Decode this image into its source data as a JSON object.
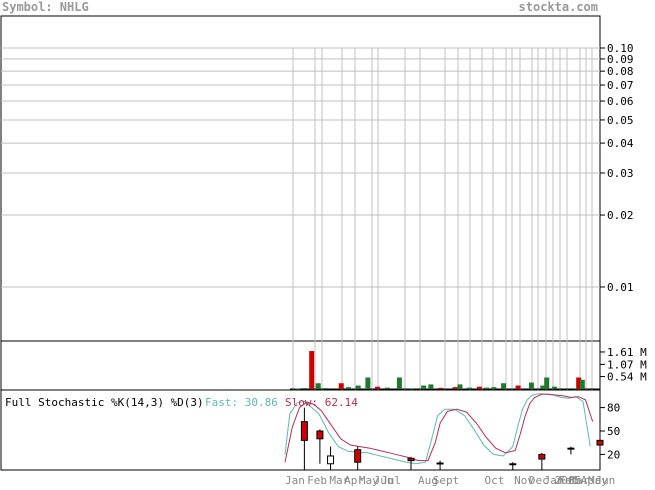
{
  "header": {
    "symbol_label": "Symbol: NHLG",
    "site": "stockta.com"
  },
  "colors": {
    "header_text": "#999999",
    "grid": "#c0c0c0",
    "axis": "#000000",
    "up_volume": "#1f7a2e",
    "down_volume": "#cc0000",
    "fast_line": "#5fb8b0",
    "slow_line": "#b03050",
    "fast_label": "#5fb8b0",
    "slow_label": "#b03050",
    "tick_label": "#888888"
  },
  "stochastic": {
    "title": "Full Stochastic %K(14,3) %D(3)",
    "fast_label": "Fast: 30.86",
    "slow_label": "Slow: 62.14"
  },
  "chart_data": [
    {
      "type": "line",
      "panel": "price",
      "scale": "log",
      "y_ticks": [
        0.1,
        0.09,
        0.08,
        0.07,
        0.06,
        0.05,
        0.04,
        0.03,
        0.02,
        0.01
      ],
      "y_tick_labels": [
        "0.10",
        "0.09",
        "0.08",
        "0.07",
        "0.06",
        "0.05",
        "0.04",
        "0.03",
        "0.02",
        "0.01"
      ],
      "ylim": [
        0.006,
        0.1
      ],
      "grid": true
    },
    {
      "type": "bar",
      "panel": "volume",
      "y_tick_labels": [
        "1.61 M",
        "1.07 M",
        "0.54 M"
      ],
      "y_ticks": [
        1.61,
        1.07,
        0.54
      ],
      "ylim": [
        0,
        2.0
      ],
      "unit": "M",
      "bars": [
        {
          "x": 0.05,
          "v": 0.02,
          "dir": "up"
        },
        {
          "x": 0.08,
          "v": 0.04,
          "dir": "up"
        },
        {
          "x": 0.108,
          "v": 1.65,
          "dir": "down"
        },
        {
          "x": 0.135,
          "v": 0.25,
          "dir": "up"
        },
        {
          "x": 0.165,
          "v": 0.04,
          "dir": "up"
        },
        {
          "x": 0.23,
          "v": 0.25,
          "dir": "down"
        },
        {
          "x": 0.26,
          "v": 0.08,
          "dir": "up"
        },
        {
          "x": 0.3,
          "v": 0.15,
          "dir": "up"
        },
        {
          "x": 0.34,
          "v": 0.5,
          "dir": "up"
        },
        {
          "x": 0.38,
          "v": 0.1,
          "dir": "down"
        },
        {
          "x": 0.42,
          "v": 0.06,
          "dir": "up"
        },
        {
          "x": 0.47,
          "v": 0.5,
          "dir": "up"
        },
        {
          "x": 0.52,
          "v": 0.03,
          "dir": "up"
        },
        {
          "x": 0.57,
          "v": 0.15,
          "dir": "up"
        },
        {
          "x": 0.6,
          "v": 0.2,
          "dir": "up"
        },
        {
          "x": 0.64,
          "v": 0.05,
          "dir": "down"
        },
        {
          "x": 0.7,
          "v": 0.08,
          "dir": "down"
        },
        {
          "x": 0.72,
          "v": 0.2,
          "dir": "up"
        },
        {
          "x": 0.76,
          "v": 0.06,
          "dir": "up"
        },
        {
          "x": 0.8,
          "v": 0.1,
          "dir": "down"
        },
        {
          "x": 0.83,
          "v": 0.06,
          "dir": "up"
        },
        {
          "x": 0.86,
          "v": 0.08,
          "dir": "up"
        },
        {
          "x": 0.9,
          "v": 0.25,
          "dir": "up"
        },
        {
          "x": 0.96,
          "v": 0.15,
          "dir": "down"
        },
        {
          "x": 1.015,
          "v": 0.28,
          "dir": "up"
        },
        {
          "x": 1.062,
          "v": 0.15,
          "dir": "up"
        },
        {
          "x": 1.078,
          "v": 0.5,
          "dir": "up"
        },
        {
          "x": 1.11,
          "v": 0.1,
          "dir": "up"
        },
        {
          "x": 1.2,
          "v": 0.03,
          "dir": "up"
        },
        {
          "x": 1.21,
          "v": 0.5,
          "dir": "down"
        },
        {
          "x": 1.225,
          "v": 0.4,
          "dir": "up"
        }
      ]
    },
    {
      "type": "line",
      "panel": "stochastic",
      "y_ticks": [
        80,
        50,
        20
      ],
      "y_tick_labels": [
        "80",
        "50",
        "20"
      ],
      "ylim": [
        0,
        100
      ],
      "series": [
        {
          "points": [
            [
              0.0,
              20
            ],
            [
              0.02,
              72
            ],
            [
              0.05,
              86
            ],
            [
              0.08,
              88
            ],
            [
              0.11,
              80
            ],
            [
              0.14,
              72
            ],
            [
              0.18,
              48
            ],
            [
              0.22,
              30
            ],
            [
              0.26,
              24
            ],
            [
              0.3,
              23
            ],
            [
              0.34,
              22
            ],
            [
              0.38,
              19
            ],
            [
              0.42,
              16
            ],
            [
              0.46,
              13
            ],
            [
              0.5,
              10
            ],
            [
              0.54,
              8
            ],
            [
              0.58,
              10
            ],
            [
              0.61,
              45
            ],
            [
              0.63,
              70
            ],
            [
              0.66,
              78
            ],
            [
              0.7,
              78
            ],
            [
              0.74,
              70
            ],
            [
              0.78,
              52
            ],
            [
              0.82,
              32
            ],
            [
              0.86,
              20
            ],
            [
              0.9,
              18
            ],
            [
              0.94,
              30
            ],
            [
              0.96,
              55
            ],
            [
              0.98,
              78
            ],
            [
              1.0,
              90
            ],
            [
              1.02,
              96
            ],
            [
              1.05,
              98
            ],
            [
              1.08,
              97
            ],
            [
              1.11,
              96
            ],
            [
              1.14,
              93
            ],
            [
              1.17,
              92
            ],
            [
              1.2,
              94
            ],
            [
              1.23,
              88
            ],
            [
              1.26,
              30
            ]
          ]
        },
        {
          "points": [
            [
              0.0,
              10
            ],
            [
              0.03,
              55
            ],
            [
              0.06,
              80
            ],
            [
              0.09,
              87
            ],
            [
              0.12,
              84
            ],
            [
              0.15,
              76
            ],
            [
              0.19,
              58
            ],
            [
              0.23,
              40
            ],
            [
              0.27,
              32
            ],
            [
              0.31,
              30
            ],
            [
              0.35,
              28
            ],
            [
              0.39,
              25
            ],
            [
              0.43,
              22
            ],
            [
              0.47,
              19
            ],
            [
              0.51,
              16
            ],
            [
              0.55,
              12
            ],
            [
              0.59,
              12
            ],
            [
              0.62,
              35
            ],
            [
              0.64,
              60
            ],
            [
              0.67,
              75
            ],
            [
              0.71,
              78
            ],
            [
              0.75,
              74
            ],
            [
              0.79,
              60
            ],
            [
              0.83,
              42
            ],
            [
              0.87,
              28
            ],
            [
              0.91,
              22
            ],
            [
              0.95,
              25
            ],
            [
              0.97,
              45
            ],
            [
              0.99,
              68
            ],
            [
              1.01,
              85
            ],
            [
              1.03,
              93
            ],
            [
              1.06,
              97
            ],
            [
              1.09,
              97
            ],
            [
              1.12,
              96
            ],
            [
              1.15,
              95
            ],
            [
              1.18,
              93
            ],
            [
              1.21,
              94
            ],
            [
              1.24,
              90
            ],
            [
              1.27,
              62
            ]
          ]
        }
      ]
    },
    {
      "type": "candlestick",
      "panel": "lower",
      "x_labels": [
        "Jan",
        "Feb",
        "Mar",
        "Apr",
        "May",
        "Jun",
        "Jul",
        "Aug",
        "Sept",
        "Oct",
        "Nov",
        "Dec",
        "Jan",
        "2005",
        "Feb",
        "Mar",
        "Apr",
        "May",
        "Jun"
      ],
      "x_label_pos": [
        0.0,
        0.03,
        0.06,
        0.08,
        0.1,
        0.12,
        0.13,
        0.18,
        0.2,
        0.27,
        0.31,
        0.33,
        0.35,
        0.365,
        0.37,
        0.385,
        0.4,
        0.41,
        0.42
      ],
      "candles": [
        {
          "x": 0.02,
          "o": 62,
          "c": 38,
          "h": 80,
          "l": 0
        },
        {
          "x": 0.036,
          "o": 50,
          "c": 40,
          "h": 52,
          "l": 8
        },
        {
          "x": 0.047,
          "o": 8,
          "c": 18,
          "h": 30,
          "l": 0
        },
        {
          "x": 0.075,
          "o": 26,
          "c": 10,
          "h": 30,
          "l": 0
        },
        {
          "x": 0.13,
          "o": 15,
          "c": 12,
          "h": 17,
          "l": 0
        },
        {
          "x": 0.16,
          "o": 9,
          "c": 9,
          "h": 12,
          "l": 0
        },
        {
          "x": 0.235,
          "o": 8,
          "c": 8,
          "h": 10,
          "l": 0
        },
        {
          "x": 0.265,
          "o": 20,
          "c": 14,
          "h": 22,
          "l": 0
        },
        {
          "x": 0.295,
          "o": 28,
          "c": 28,
          "h": 30,
          "l": 20
        },
        {
          "x": 0.325,
          "o": 38,
          "c": 32,
          "h": 40,
          "l": 28
        }
      ]
    }
  ]
}
